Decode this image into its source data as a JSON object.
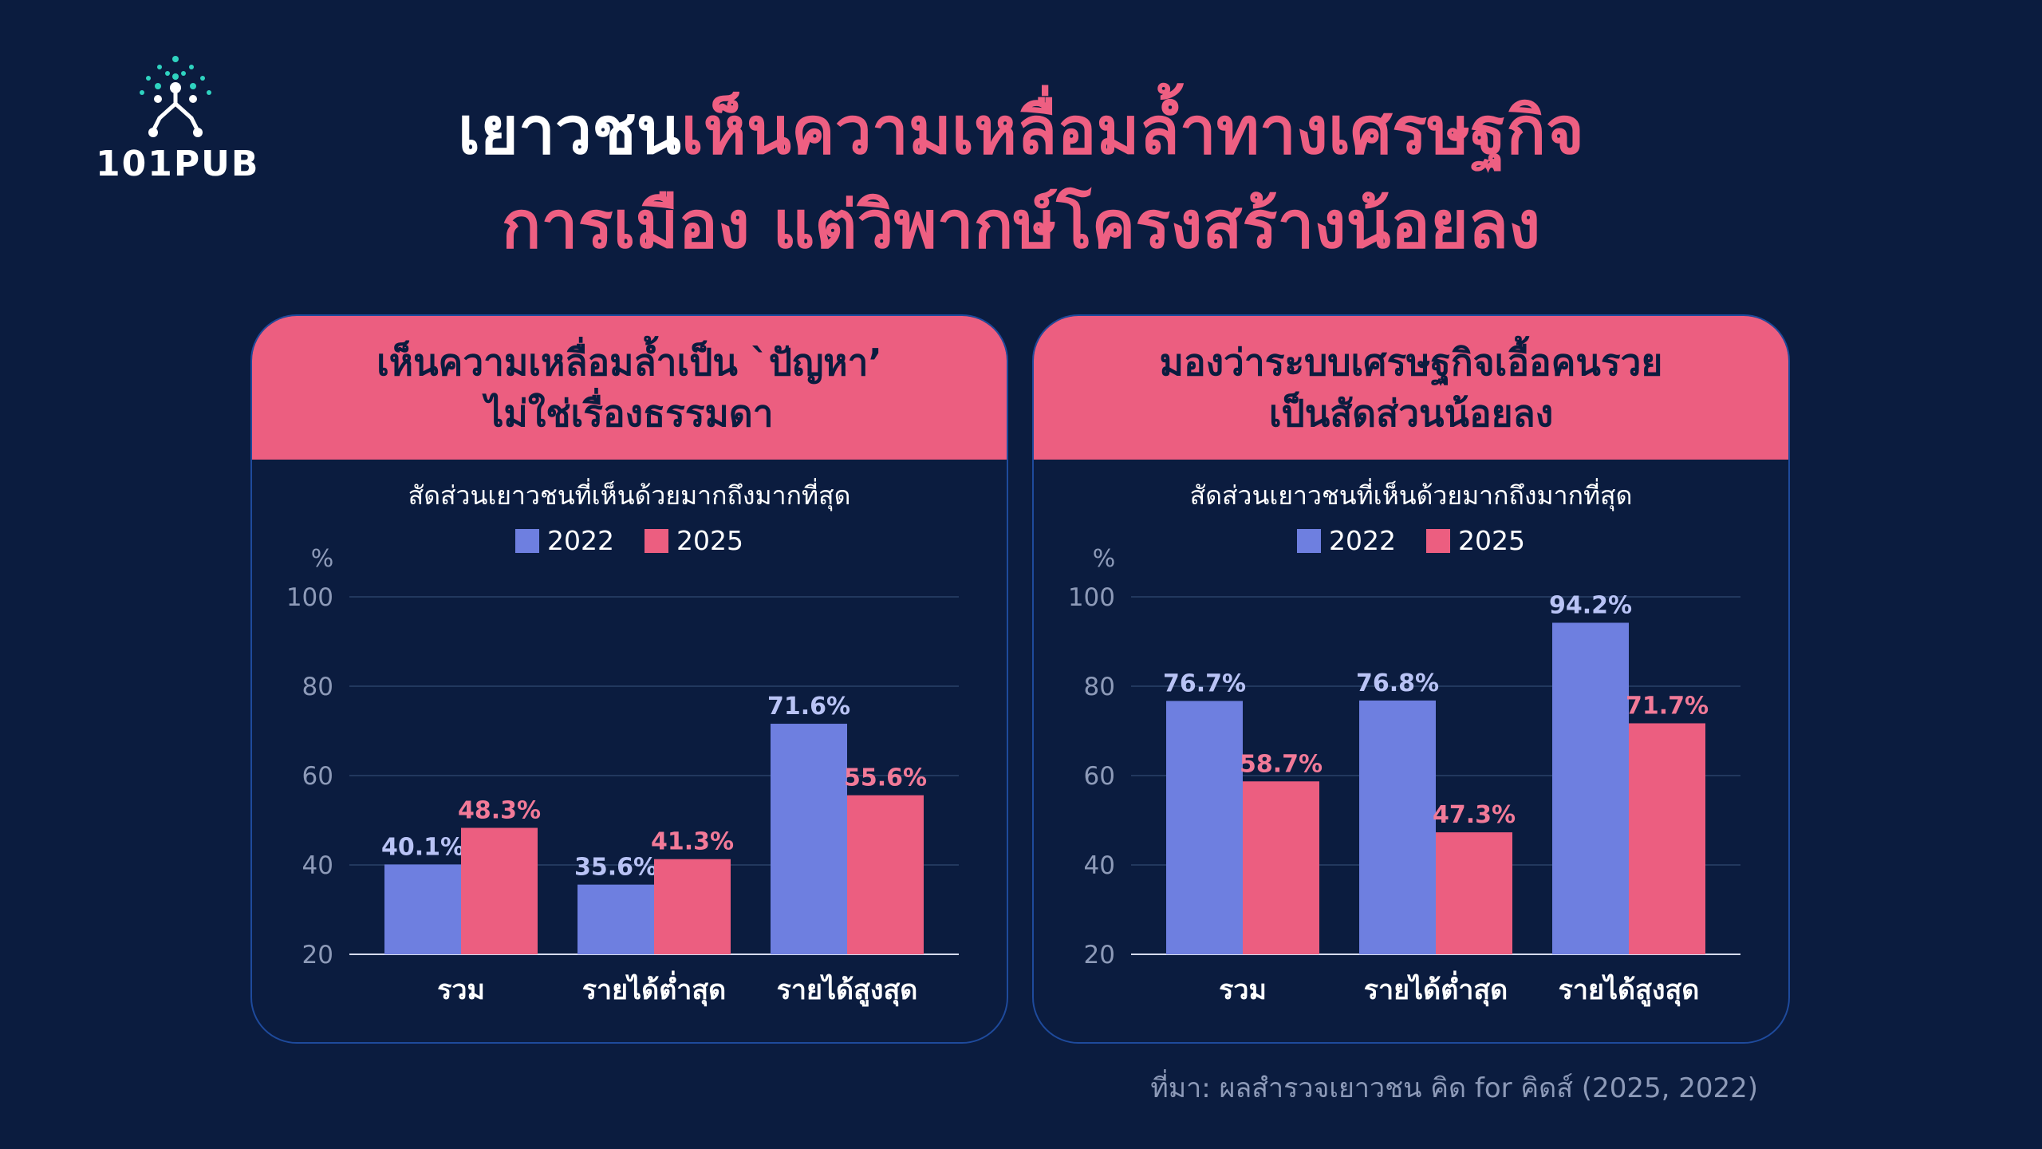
{
  "logo": {
    "text": "101PUB"
  },
  "headline": {
    "line1_white": "เยาวชน",
    "line1_pink": "เห็นความเหลื่อมล้ำทางเศรษฐกิจ",
    "line2": "การเมือง แต่วิพากษ์โครงสร้างน้อยลง"
  },
  "source": "ที่มา: ผลสำรวจเยาวชน คิด for คิดส์ (2025, 2022)",
  "colors": {
    "background": "#0b1c3f",
    "accent_pink": "#ec5e80",
    "series_2022": "#6e7fe0",
    "series_2025": "#ec5e80",
    "label_2022": "#b9c3f5",
    "label_2025": "#f27a98"
  },
  "chart_data": [
    {
      "type": "bar",
      "title": "เห็นความเหลื่อมล้ำเป็น `ปัญหา’ ไม่ใช่เรื่องธรรมดา",
      "title_lines": [
        "เห็นความเหลื่อมล้ำเป็น `ปัญหา’",
        "ไม่ใช่เรื่องธรรมดา"
      ],
      "subtitle": "สัดส่วนเยาวชนที่เห็นด้วยมากถึงมากที่สุด",
      "ylabel": "%",
      "ylim": [
        20,
        100
      ],
      "yticks": [
        20,
        40,
        60,
        80,
        100
      ],
      "grid": true,
      "legend_position": "top-center",
      "categories": [
        "รวม",
        "รายได้ต่ำสุด",
        "รายได้สูงสุด"
      ],
      "series": [
        {
          "name": "2022",
          "values": [
            40.1,
            35.6,
            71.6
          ],
          "labels": [
            "40.1%",
            "35.6%",
            "71.6%"
          ]
        },
        {
          "name": "2025",
          "values": [
            48.3,
            41.3,
            55.6
          ],
          "labels": [
            "48.3%",
            "41.3%",
            "55.6%"
          ]
        }
      ]
    },
    {
      "type": "bar",
      "title": "มองว่าระบบเศรษฐกิจเอื้อคนรวย เป็นสัดส่วนน้อยลง",
      "title_lines": [
        "มองว่าระบบเศรษฐกิจเอื้อคนรวย",
        "เป็นสัดส่วนน้อยลง"
      ],
      "subtitle": "สัดส่วนเยาวชนที่เห็นด้วยมากถึงมากที่สุด",
      "ylabel": "%",
      "ylim": [
        20,
        100
      ],
      "yticks": [
        20,
        40,
        60,
        80,
        100
      ],
      "grid": true,
      "legend_position": "top-center",
      "categories": [
        "รวม",
        "รายได้ต่ำสุด",
        "รายได้สูงสุด"
      ],
      "series": [
        {
          "name": "2022",
          "values": [
            76.7,
            76.8,
            94.2
          ],
          "labels": [
            "76.7%",
            "76.8%",
            "94.2%"
          ]
        },
        {
          "name": "2025",
          "values": [
            58.7,
            47.3,
            71.7
          ],
          "labels": [
            "58.7%",
            "47.3%",
            "71.7%"
          ]
        }
      ]
    }
  ]
}
